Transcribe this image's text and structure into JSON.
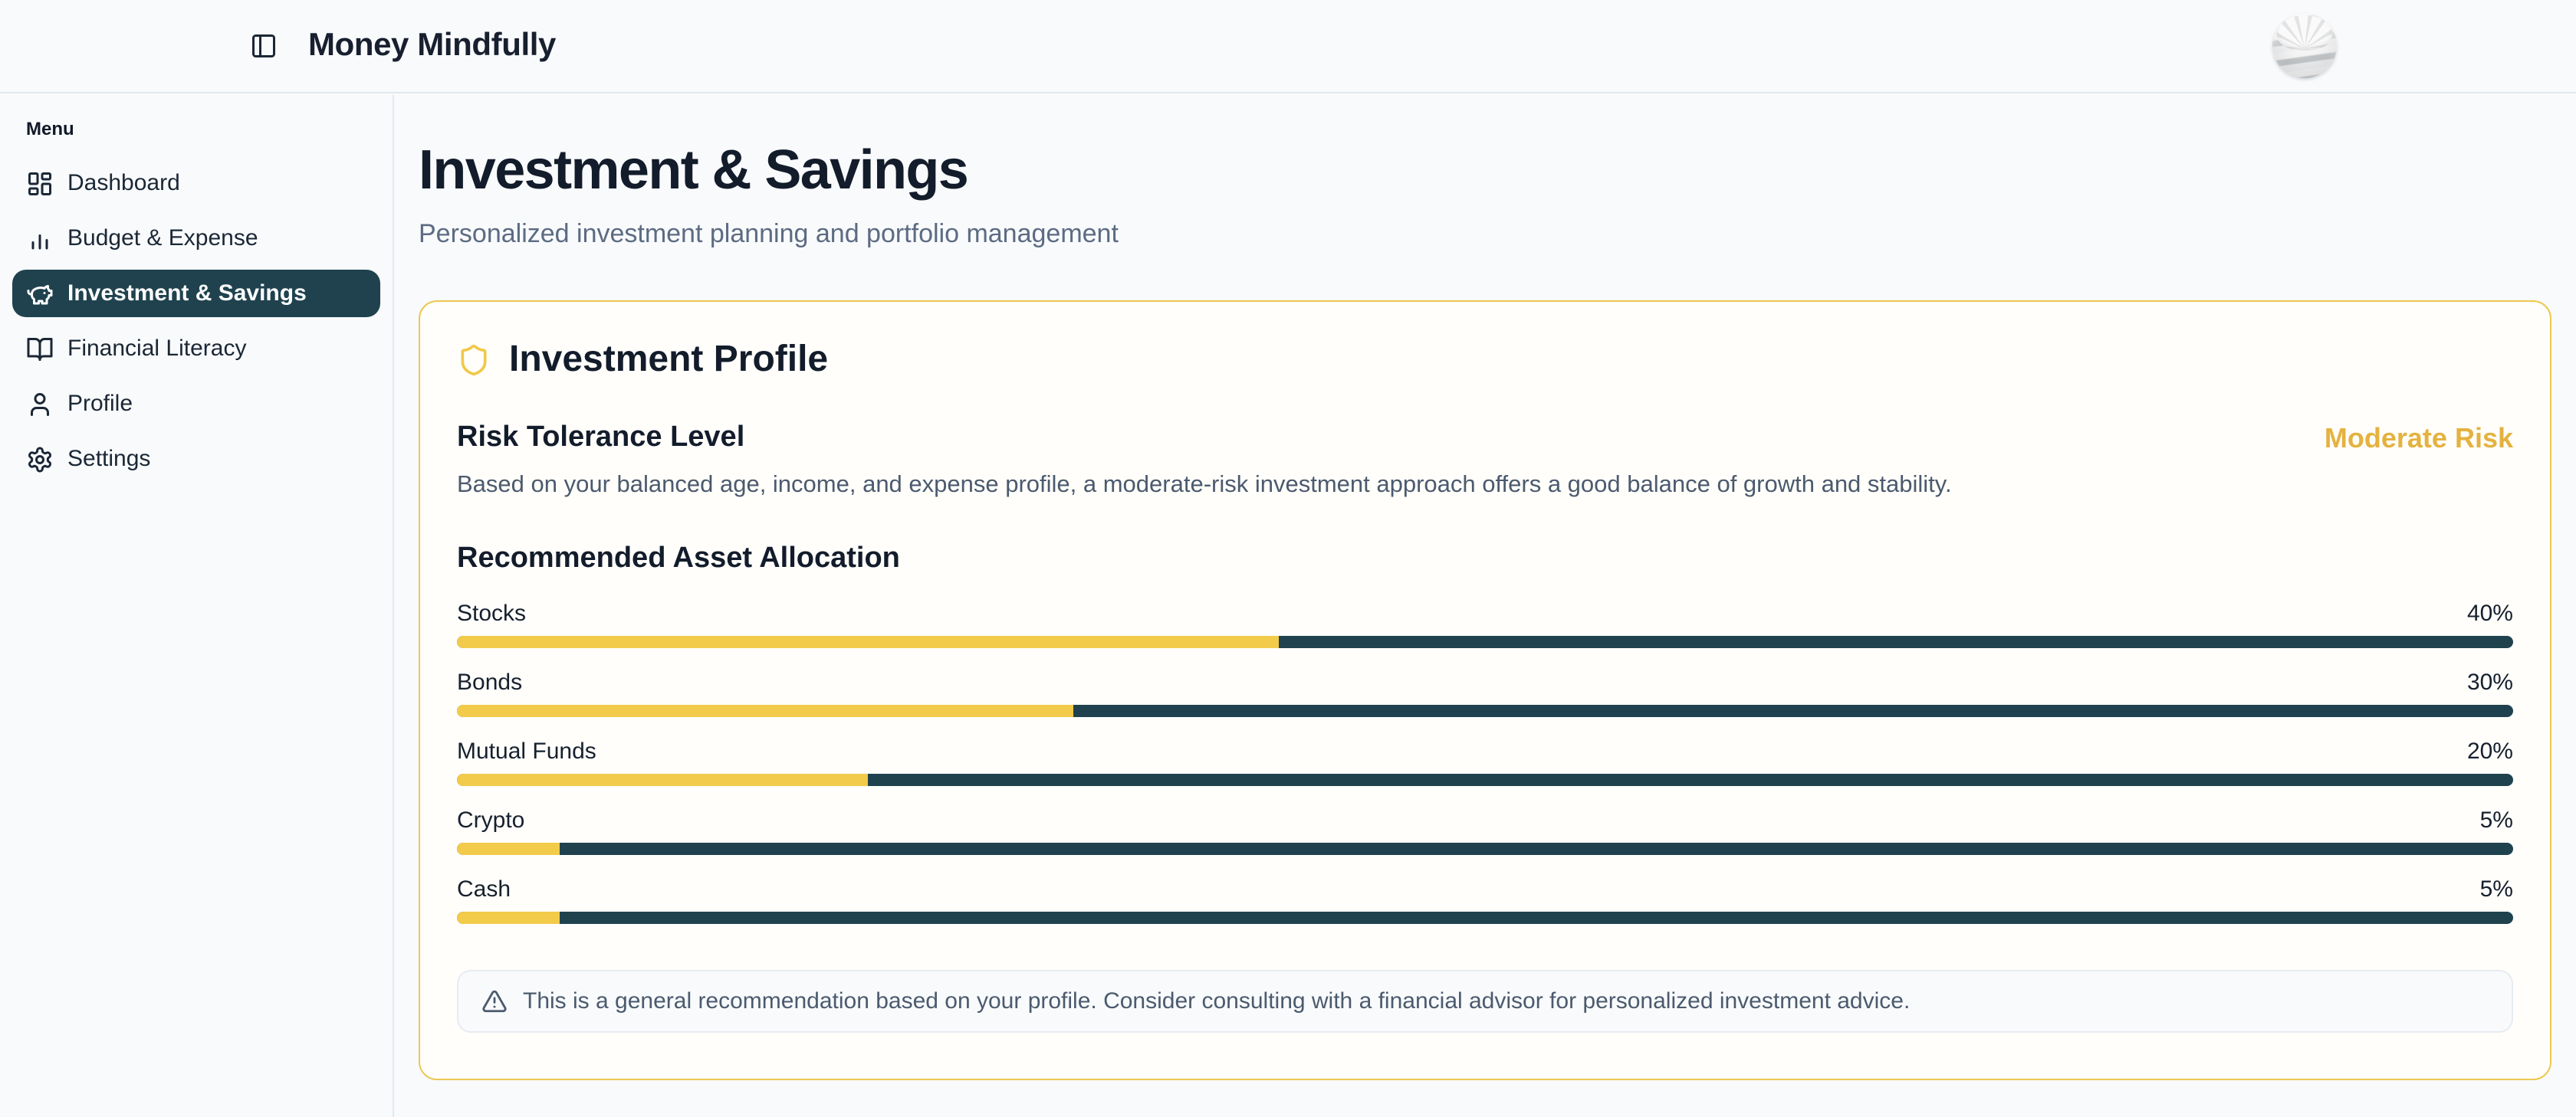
{
  "app": {
    "title": "Money Mindfully"
  },
  "sidebar": {
    "section_label": "Menu",
    "items": [
      {
        "label": "Dashboard",
        "icon": "dashboard-icon",
        "active": false
      },
      {
        "label": "Budget & Expense",
        "icon": "bar-chart-icon",
        "active": false
      },
      {
        "label": "Investment & Savings",
        "icon": "piggy-bank-icon",
        "active": true
      },
      {
        "label": "Financial Literacy",
        "icon": "book-open-icon",
        "active": false
      },
      {
        "label": "Profile",
        "icon": "user-icon",
        "active": false
      },
      {
        "label": "Settings",
        "icon": "gear-icon",
        "active": false
      }
    ]
  },
  "page": {
    "title": "Investment & Savings",
    "subtitle": "Personalized investment planning and portfolio management"
  },
  "profile_card": {
    "title": "Investment Profile",
    "risk": {
      "heading": "Risk Tolerance Level",
      "badge": "Moderate Risk",
      "description": "Based on your balanced age, income, and expense profile, a moderate-risk investment approach offers a good balance of growth and stability."
    },
    "allocation": {
      "heading": "Recommended Asset Allocation",
      "items": [
        {
          "label": "Stocks",
          "pct": 40,
          "pct_label": "40%"
        },
        {
          "label": "Bonds",
          "pct": 30,
          "pct_label": "30%"
        },
        {
          "label": "Mutual Funds",
          "pct": 20,
          "pct_label": "20%"
        },
        {
          "label": "Crypto",
          "pct": 5,
          "pct_label": "5%"
        },
        {
          "label": "Cash",
          "pct": 5,
          "pct_label": "5%"
        }
      ]
    },
    "note": "This is a general recommendation based on your profile. Consider consulting with a financial advisor for personalized investment advice."
  },
  "colors": {
    "accent_yellow": "#f2cb4b",
    "gold_text": "#e4b23f",
    "teal_dark": "#1f424e",
    "card_border": "#edc84f",
    "page_bg": "#f8fafc",
    "text_dark": "#131c2b",
    "text_muted": "#5c6b82"
  },
  "chart_data": {
    "type": "bar",
    "title": "Recommended Asset Allocation",
    "categories": [
      "Stocks",
      "Bonds",
      "Mutual Funds",
      "Crypto",
      "Cash"
    ],
    "values": [
      40,
      30,
      20,
      5,
      5
    ],
    "unit": "%",
    "xlim": [
      0,
      100
    ],
    "fill_color": "#f2cb4b",
    "track_color": "#1f424e",
    "orientation": "horizontal-progress"
  }
}
